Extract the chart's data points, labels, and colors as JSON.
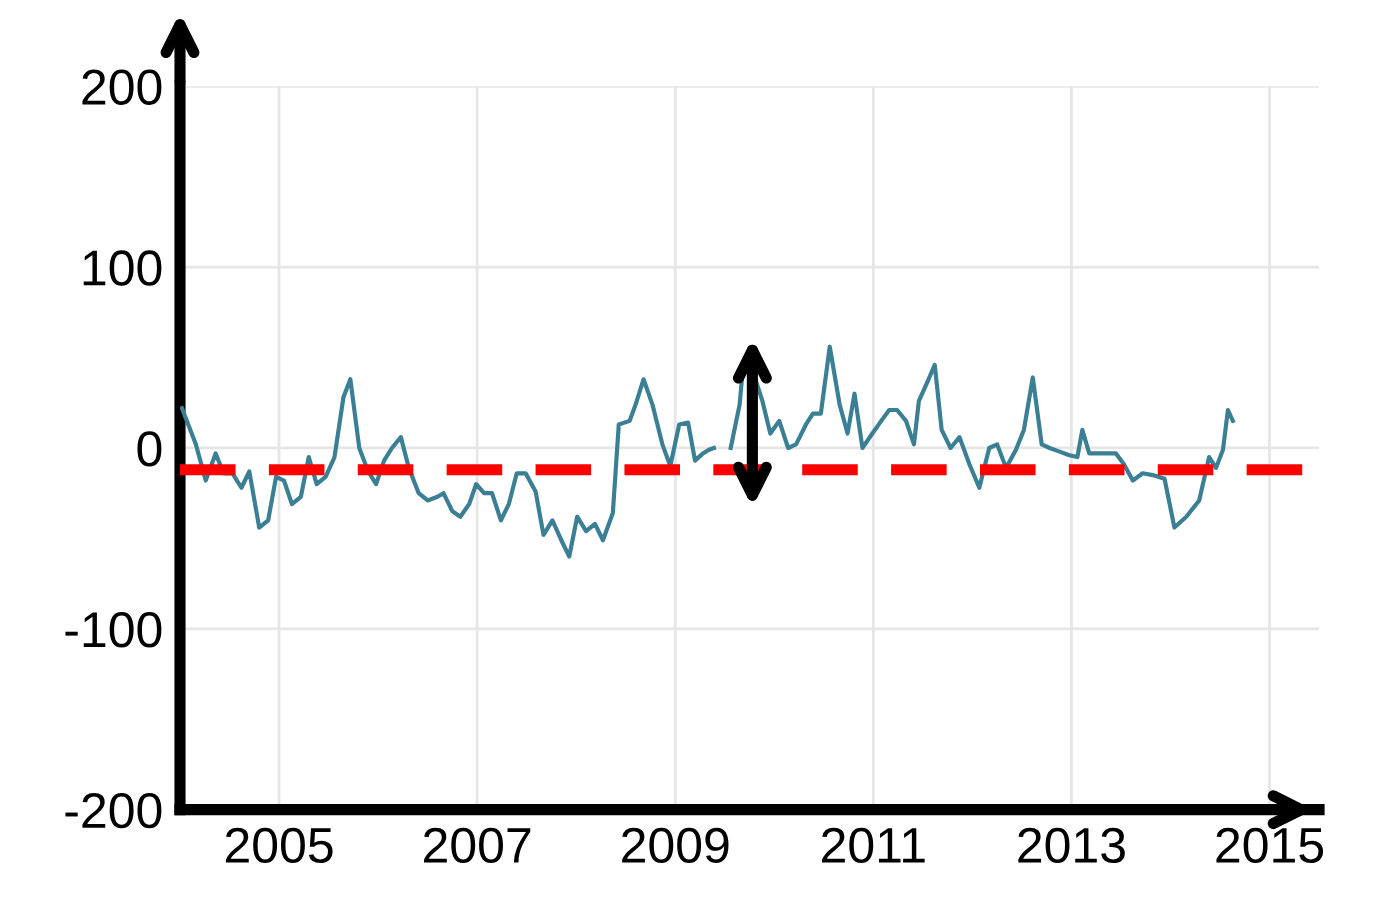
{
  "chart_data": {
    "type": "line",
    "xlim": [
      2004,
      2015.5
    ],
    "xticks": [
      2005,
      2007,
      2009,
      2011,
      2013,
      2015
    ],
    "ylim": [
      -200,
      200
    ],
    "yticks": [
      -200,
      -100,
      0,
      100,
      200
    ],
    "grid": true,
    "line_style": "solid",
    "series": [
      {
        "color": "#3a7f93",
        "x": [
          2004.02,
          2004.16,
          2004.26,
          2004.36,
          2004.44,
          2004.53,
          2004.62,
          2004.7,
          2004.8,
          2004.89,
          2004.97,
          2005.05,
          2005.13,
          2005.22,
          2005.3,
          2005.38,
          2005.47,
          2005.56,
          2005.65,
          2005.72,
          2005.81,
          2005.9,
          2005.98,
          2006.06,
          2006.14,
          2006.23,
          2006.31,
          2006.41,
          2006.5,
          2006.6,
          2006.66,
          2006.75,
          2006.83,
          2006.92,
          2006.99,
          2007.07,
          2007.15,
          2007.24,
          2007.32,
          2007.4,
          2007.49,
          2007.59,
          2007.67,
          2007.76,
          2007.85,
          2007.93,
          2008.01,
          2008.1,
          2008.19,
          2008.27,
          2008.37,
          2008.43,
          2008.54,
          2008.6,
          2008.68,
          2008.77,
          2008.87,
          2008.95,
          2009.04,
          2009.13,
          2009.2,
          2009.28,
          2009.34,
          2009.39,
          2009.48,
          2009.56,
          2009.65,
          2009.69,
          2009.78,
          2009.88,
          2009.96,
          2010.05,
          2010.14,
          2010.22,
          2010.32,
          2010.39,
          2010.47,
          2010.56,
          2010.66,
          2010.74,
          2010.81,
          2010.89,
          2010.99,
          2011.08,
          2011.16,
          2011.24,
          2011.33,
          2011.41,
          2011.46,
          2011.55,
          2011.62,
          2011.69,
          2011.78,
          2011.87,
          2011.97,
          2012.07,
          2012.17,
          2012.25,
          2012.34,
          2012.44,
          2012.52,
          2012.61,
          2012.7,
          2012.78,
          2012.88,
          2012.98,
          2013.06,
          2013.11,
          2013.18,
          2013.26,
          2013.35,
          2013.45,
          2013.53,
          2013.62,
          2013.72,
          2013.82,
          2013.94,
          2014.04,
          2014.16,
          2014.29,
          2014.39,
          2014.46,
          2014.53,
          2014.58,
          2014.63
        ],
        "values": [
          22,
          2,
          -18,
          -3,
          -14,
          -14,
          -22,
          -13,
          -44,
          -40,
          -16,
          -18,
          -31,
          -27,
          -5,
          -20,
          -16,
          -5,
          28,
          38,
          0,
          -13,
          -20,
          -7,
          0,
          6,
          -11,
          -25,
          -29,
          -27,
          -25,
          -35,
          -38,
          -31,
          -20,
          -25,
          -25,
          -40,
          -31,
          -14,
          -14,
          -24,
          -48,
          -40,
          -51,
          -60,
          -38,
          -46,
          -42,
          -51,
          -36,
          13,
          15,
          24,
          38,
          24,
          2,
          -10,
          13,
          14,
          -7,
          -3,
          -1,
          0,
          null,
          0,
          24,
          48,
          43,
          26,
          8,
          15,
          0,
          2,
          13,
          19,
          19,
          56,
          24,
          8,
          30,
          0,
          8,
          15,
          21,
          21,
          15,
          2,
          26,
          37,
          46,
          10,
          0,
          6,
          -9,
          -22,
          0,
          2,
          -11,
          -1,
          10,
          39,
          2,
          0,
          -2,
          -4,
          -5,
          10,
          -3,
          -3,
          -3,
          -3,
          -9,
          -18,
          -14,
          -15,
          -17,
          -44,
          -38,
          -29,
          -5,
          -11,
          -1,
          21,
          15
        ]
      }
    ],
    "ref_lines": [
      {
        "axis": "y",
        "value": -12,
        "color": "#ff0000",
        "line_style": "dashed"
      }
    ]
  }
}
